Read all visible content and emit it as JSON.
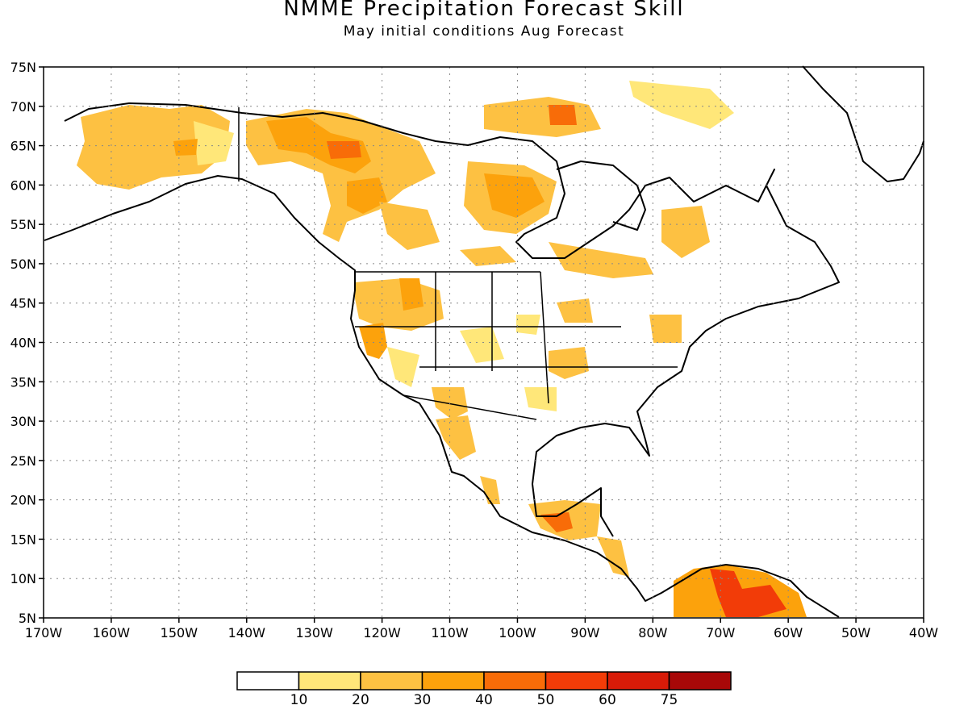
{
  "title": "NMME Precipitation Forecast Skill",
  "subtitle": "May initial conditions  Aug Forecast",
  "map": {
    "lon_range": [
      -170,
      -40
    ],
    "lat_range": [
      5,
      75
    ],
    "grid": "dotted",
    "lon_labels": [
      "170W",
      "160W",
      "150W",
      "140W",
      "130W",
      "120W",
      "110W",
      "100W",
      "90W",
      "80W",
      "70W",
      "60W",
      "50W",
      "40W"
    ],
    "lat_labels": [
      "75N",
      "70N",
      "65N",
      "60N",
      "55N",
      "50N",
      "45N",
      "40N",
      "35N",
      "30N",
      "25N",
      "20N",
      "15N",
      "10N",
      "5N"
    ]
  },
  "colorbar": {
    "labels": [
      "10",
      "20",
      "30",
      "40",
      "50",
      "60",
      "75"
    ],
    "colors": [
      "#ffffff",
      "#ffe779",
      "#fdc142",
      "#fca20c",
      "#f86c08",
      "#f23c08",
      "#d81b08",
      "#a80808"
    ]
  }
}
